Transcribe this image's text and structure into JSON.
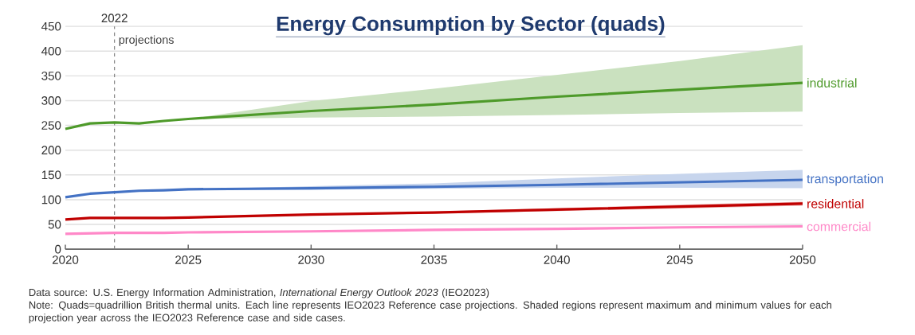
{
  "chart_data": {
    "type": "line",
    "title": "Energy Consumption by Sector (quads)",
    "x": [
      2020,
      2021,
      2022,
      2023,
      2024,
      2025,
      2030,
      2035,
      2040,
      2045,
      2050
    ],
    "series": [
      {
        "name": "industrial",
        "color": "#4e9a2a",
        "values": [
          243,
          254,
          256,
          254,
          259,
          263,
          279,
          292,
          308,
          322,
          336
        ],
        "lower": [
          null,
          null,
          null,
          null,
          null,
          263,
          266,
          268,
          271,
          275,
          278
        ],
        "upper": [
          null,
          null,
          null,
          null,
          null,
          263,
          299,
          324,
          352,
          380,
          412
        ]
      },
      {
        "name": "transportation",
        "color": "#4472c4",
        "values": [
          105,
          112,
          115,
          118,
          119,
          121,
          123,
          126,
          130,
          135,
          140
        ],
        "lower": [
          null,
          null,
          null,
          null,
          null,
          121,
          120,
          122,
          124,
          124,
          123
        ],
        "upper": [
          null,
          null,
          null,
          null,
          null,
          121,
          127,
          133,
          143,
          152,
          160
        ]
      },
      {
        "name": "residential",
        "color": "#c00000",
        "values": [
          60,
          63,
          63,
          63,
          63,
          64,
          70,
          74,
          80,
          86,
          92
        ],
        "lower": [
          null,
          null,
          null,
          null,
          null,
          64,
          69,
          72,
          77,
          82,
          88
        ],
        "upper": [
          null,
          null,
          null,
          null,
          null,
          64,
          71,
          76,
          83,
          90,
          96
        ]
      },
      {
        "name": "commercial",
        "color": "#ff88c8",
        "values": [
          31,
          32,
          33,
          33,
          33,
          34,
          36,
          39,
          41,
          44,
          46
        ]
      }
    ],
    "xlim": [
      2020,
      2050
    ],
    "xticks": [
      2020,
      2025,
      2030,
      2035,
      2040,
      2045,
      2050
    ],
    "ylim": [
      0,
      450
    ],
    "yticks": [
      0,
      50,
      100,
      150,
      200,
      250,
      300,
      350,
      400,
      450
    ],
    "grid": "y",
    "ref_lines": [
      {
        "axis": "x",
        "value": 2022,
        "label": "2022",
        "color": "#808080",
        "line_style": "dashed"
      }
    ],
    "annotations": [
      {
        "text": "projections",
        "x": 2022,
        "y": 440
      },
      "Data source: U.S. Energy Information Administration, *International Energy Outlook 2023* (IEO2023)",
      "Note: Quads=quadrillion British thermal units. Each line represents IEO2023 Reference case projections. Shaded regions represent maximum and minimum values for each projection year across the IEO2023 Reference case and side cases."
    ]
  }
}
